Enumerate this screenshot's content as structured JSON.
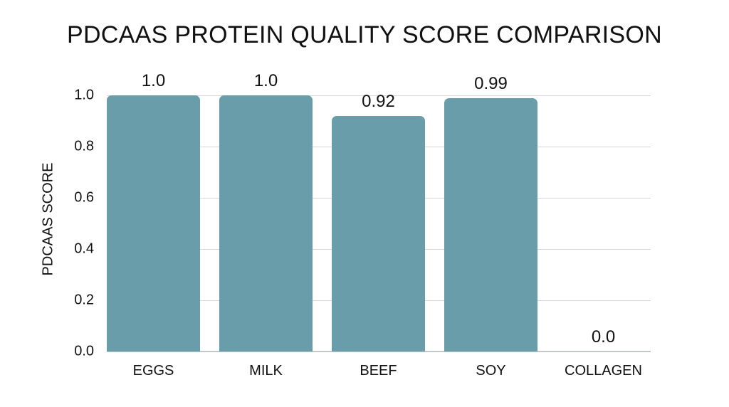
{
  "chart_data": {
    "type": "bar",
    "title": "PDCAAS PROTEIN QUALITY SCORE COMPARISON",
    "xlabel": "",
    "ylabel": "PDCAAS SCORE",
    "categories": [
      "EGGS",
      "MILK",
      "BEEF",
      "SOY",
      "COLLAGEN"
    ],
    "values": [
      1.0,
      1.0,
      0.92,
      0.99,
      0.0
    ],
    "value_labels": [
      "1.0",
      "1.0",
      "0.92",
      "0.99",
      "0.0"
    ],
    "ylim": [
      0,
      1.0
    ],
    "yticks": [
      "0.0",
      "0.2",
      "0.4",
      "0.6",
      "0.8",
      "1.0"
    ],
    "grid": true,
    "legend": null,
    "bar_color": "#6a9daa"
  }
}
